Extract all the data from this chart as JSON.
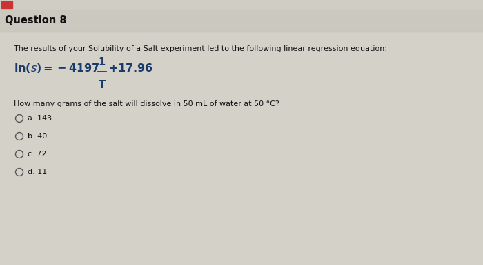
{
  "title": "Question 8",
  "bg_color": "#cbc8c0",
  "content_bg": "#d4d1c9",
  "header_line_color": "#b0ada5",
  "intro_text": "The results of your Solubility of a Salt experiment led to the following linear regression equation:",
  "question": "How many grams of the salt will dissolve in 50 mL of water at 50 °C?",
  "choices": [
    "a. 143",
    "b. 40",
    "c. 72",
    "d. 11"
  ],
  "eq_color": "#1a3a6b",
  "title_color": "#111111",
  "body_color": "#111111",
  "choice_color": "#111111",
  "circle_color": "#555555",
  "top_strip_color": "#c8c5bd",
  "top_nav_color": "#d0cdc5",
  "red_btn_color": "#cc3333",
  "font_size_title": 10.5,
  "font_size_body": 8.0,
  "font_size_eq": 11.5,
  "font_size_choices": 8.0
}
